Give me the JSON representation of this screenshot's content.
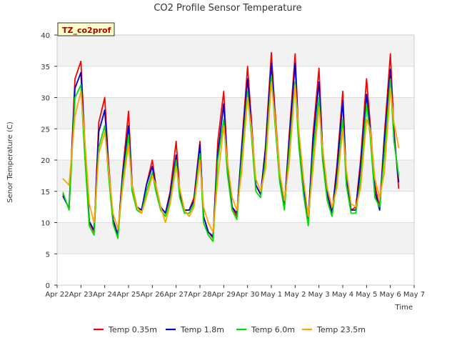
{
  "chart_data": {
    "type": "line",
    "title": "CO2 Profile Sensor Temperature",
    "xlabel": "Time",
    "ylabel": "Senor Temperature (C)",
    "annotation": "TZ_co2prof",
    "ylim": [
      0,
      40
    ],
    "yticks": [
      0,
      5,
      10,
      15,
      20,
      25,
      30,
      35,
      40
    ],
    "xlim": [
      "Apr 22",
      "May 7"
    ],
    "xticks": [
      "Apr 22",
      "Apr 23",
      "Apr 24",
      "Apr 25",
      "Apr 26",
      "Apr 27",
      "Apr 28",
      "Apr 29",
      "Apr 30",
      "May 1",
      "May 2",
      "May 3",
      "May 4",
      "May 5",
      "May 6",
      "May 7"
    ],
    "grid": true,
    "legend_position": "bottom",
    "x_unit_note": "x values are days since Apr 22 00:00",
    "series": [
      {
        "name": "Temp 0.35m",
        "color": "#ff0000",
        "x": [
          0.25,
          0.5,
          0.75,
          1.0,
          1.15,
          1.35,
          1.55,
          1.75,
          2.0,
          2.15,
          2.35,
          2.55,
          2.75,
          3.0,
          3.15,
          3.35,
          3.55,
          3.75,
          4.0,
          4.15,
          4.35,
          4.55,
          4.75,
          5.0,
          5.15,
          5.35,
          5.55,
          5.75,
          6.0,
          6.15,
          6.35,
          6.55,
          6.75,
          7.0,
          7.15,
          7.35,
          7.55,
          7.75,
          8.0,
          8.15,
          8.35,
          8.55,
          8.75,
          9.0,
          9.15,
          9.35,
          9.55,
          9.75,
          10.0,
          10.15,
          10.35,
          10.55,
          10.75,
          11.0,
          11.15,
          11.35,
          11.55,
          11.75,
          12.0,
          12.15,
          12.35,
          12.55,
          12.75,
          13.0,
          13.15,
          13.35,
          13.55,
          13.75,
          14.0,
          14.15,
          14.35
        ],
        "y": [
          14.5,
          12.2,
          33.0,
          35.8,
          24.0,
          10.0,
          8.5,
          26.0,
          30.0,
          20.0,
          10.5,
          8.0,
          18.0,
          27.8,
          16.0,
          12.5,
          12.0,
          16.0,
          20.0,
          16.0,
          12.5,
          11.5,
          15.0,
          23.0,
          15.0,
          12.0,
          12.0,
          14.0,
          23.0,
          11.0,
          8.5,
          7.5,
          23.0,
          31.0,
          20.0,
          12.5,
          11.0,
          22.0,
          35.0,
          27.0,
          16.0,
          14.5,
          22.0,
          37.2,
          28.0,
          18.0,
          12.5,
          24.0,
          37.0,
          24.0,
          16.0,
          10.0,
          24.0,
          34.7,
          22.0,
          15.0,
          11.5,
          19.0,
          31.0,
          17.0,
          12.0,
          12.5,
          20.0,
          33.0,
          26.0,
          16.0,
          12.5,
          24.0,
          37.0,
          25.0,
          15.5
        ]
      },
      {
        "name": "Temp 1.8m",
        "color": "#0000cc",
        "x": [
          0.25,
          0.5,
          0.75,
          1.0,
          1.15,
          1.35,
          1.55,
          1.75,
          2.0,
          2.15,
          2.35,
          2.55,
          2.75,
          3.0,
          3.15,
          3.35,
          3.55,
          3.75,
          4.0,
          4.15,
          4.35,
          4.55,
          4.75,
          5.0,
          5.15,
          5.35,
          5.55,
          5.75,
          6.0,
          6.15,
          6.35,
          6.55,
          6.75,
          7.0,
          7.15,
          7.35,
          7.55,
          7.75,
          8.0,
          8.15,
          8.35,
          8.55,
          8.75,
          9.0,
          9.15,
          9.35,
          9.55,
          9.75,
          10.0,
          10.15,
          10.35,
          10.55,
          10.75,
          11.0,
          11.15,
          11.35,
          11.55,
          11.75,
          12.0,
          12.15,
          12.35,
          12.55,
          12.75,
          13.0,
          13.15,
          13.35,
          13.55,
          13.75,
          14.0,
          14.15,
          14.35
        ],
        "y": [
          14.2,
          12.3,
          31.5,
          34.0,
          23.0,
          10.2,
          8.8,
          24.5,
          28.0,
          19.5,
          10.5,
          8.0,
          17.5,
          25.5,
          16.0,
          12.5,
          12.0,
          16.0,
          19.0,
          15.5,
          12.5,
          11.5,
          14.5,
          20.8,
          14.5,
          12.0,
          12.0,
          13.5,
          22.5,
          11.0,
          8.5,
          7.8,
          21.0,
          29.0,
          19.0,
          12.5,
          11.5,
          21.5,
          33.0,
          26.0,
          16.0,
          14.5,
          21.5,
          35.5,
          27.0,
          17.5,
          12.5,
          23.0,
          35.5,
          23.5,
          15.5,
          10.5,
          23.0,
          32.5,
          21.5,
          14.5,
          11.5,
          18.0,
          29.5,
          17.0,
          12.0,
          12.0,
          19.0,
          30.5,
          25.0,
          15.0,
          12.0,
          23.0,
          34.5,
          24.0,
          16.5
        ]
      },
      {
        "name": "Temp 6.0m",
        "color": "#00dd00",
        "x": [
          0.25,
          0.5,
          0.75,
          1.0,
          1.15,
          1.35,
          1.55,
          1.75,
          2.0,
          2.15,
          2.35,
          2.55,
          2.75,
          3.0,
          3.15,
          3.35,
          3.55,
          3.75,
          4.0,
          4.15,
          4.35,
          4.55,
          4.75,
          5.0,
          5.15,
          5.35,
          5.55,
          5.75,
          6.0,
          6.15,
          6.35,
          6.55,
          6.75,
          7.0,
          7.15,
          7.35,
          7.55,
          7.75,
          8.0,
          8.15,
          8.35,
          8.55,
          8.75,
          9.0,
          9.15,
          9.35,
          9.55,
          9.75,
          10.0,
          10.15,
          10.35,
          10.55,
          10.75,
          11.0,
          11.15,
          11.35,
          11.55,
          11.75,
          12.0,
          12.15,
          12.35,
          12.55,
          12.75,
          13.0,
          13.15,
          13.35,
          13.55,
          13.75,
          14.0,
          14.15,
          14.35
        ],
        "y": [
          14.8,
          12.0,
          30.0,
          32.0,
          21.5,
          9.5,
          8.0,
          22.0,
          25.5,
          18.0,
          9.8,
          7.5,
          16.5,
          24.0,
          15.0,
          12.0,
          11.5,
          15.0,
          18.0,
          15.0,
          12.0,
          11.0,
          13.5,
          20.0,
          14.0,
          11.5,
          11.5,
          13.0,
          21.0,
          10.0,
          8.0,
          7.0,
          20.0,
          26.5,
          18.0,
          12.0,
          10.5,
          20.0,
          31.0,
          24.5,
          15.0,
          14.0,
          20.0,
          33.5,
          26.0,
          16.5,
          12.0,
          21.5,
          32.5,
          22.5,
          14.5,
          9.5,
          21.0,
          30.0,
          20.0,
          13.5,
          11.0,
          16.5,
          26.5,
          16.0,
          11.5,
          11.5,
          17.0,
          29.0,
          24.0,
          14.0,
          12.5,
          21.0,
          33.0,
          23.0,
          17.5
        ]
      },
      {
        "name": "Temp 23.5m",
        "color": "#ffa500",
        "x": [
          0.25,
          0.5,
          0.75,
          1.0,
          1.15,
          1.35,
          1.55,
          1.75,
          2.0,
          2.15,
          2.35,
          2.55,
          2.75,
          3.0,
          3.15,
          3.35,
          3.55,
          3.75,
          4.0,
          4.15,
          4.35,
          4.55,
          4.75,
          5.0,
          5.15,
          5.35,
          5.55,
          5.75,
          6.0,
          6.15,
          6.35,
          6.55,
          6.75,
          7.0,
          7.15,
          7.35,
          7.55,
          7.75,
          8.0,
          8.15,
          8.35,
          8.55,
          8.75,
          9.0,
          9.15,
          9.35,
          9.55,
          9.75,
          10.0,
          10.15,
          10.35,
          10.55,
          10.75,
          11.0,
          11.15,
          11.35,
          11.55,
          11.75,
          12.0,
          12.15,
          12.35,
          12.55,
          12.75,
          13.0,
          13.15,
          13.35,
          13.55,
          13.75,
          14.0,
          14.15,
          14.35
        ],
        "y": [
          17.0,
          16.0,
          27.0,
          31.0,
          24.0,
          13.0,
          10.0,
          21.0,
          24.5,
          19.0,
          11.5,
          9.0,
          15.5,
          22.5,
          16.0,
          12.5,
          11.5,
          14.0,
          17.5,
          16.0,
          12.5,
          10.0,
          13.0,
          19.0,
          15.5,
          12.0,
          11.0,
          12.5,
          20.0,
          12.5,
          10.0,
          8.5,
          17.0,
          25.5,
          20.0,
          14.0,
          12.0,
          18.0,
          30.0,
          25.5,
          17.0,
          15.0,
          18.5,
          32.5,
          27.0,
          18.0,
          13.5,
          19.5,
          32.0,
          25.0,
          17.0,
          11.0,
          18.5,
          28.5,
          22.0,
          15.5,
          12.5,
          15.5,
          25.0,
          18.5,
          13.0,
          12.5,
          15.5,
          26.5,
          25.0,
          17.0,
          14.0,
          18.0,
          31.5,
          26.0,
          22.0
        ]
      }
    ]
  }
}
